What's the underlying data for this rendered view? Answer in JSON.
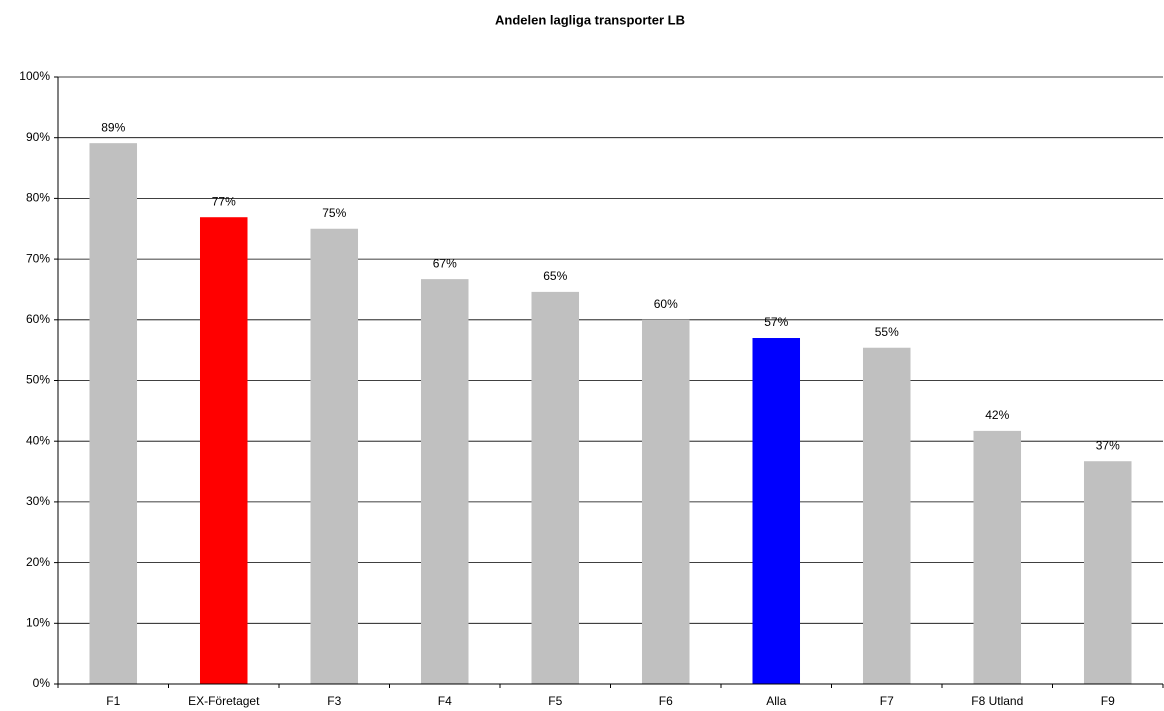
{
  "chart_data": {
    "type": "bar",
    "title": "Andelen lagliga transporter LB",
    "categories": [
      "F1",
      "EX-Företaget",
      "F3",
      "F4",
      "F5",
      "F6",
      "Alla",
      "F7",
      "F8 Utland",
      "F9"
    ],
    "values": [
      89.1,
      76.9,
      75.0,
      66.7,
      64.6,
      60.0,
      57.0,
      55.4,
      41.7,
      36.7
    ],
    "value_labels": [
      "89%",
      "77%",
      "75%",
      "67%",
      "65%",
      "60%",
      "57%",
      "55%",
      "42%",
      "37%"
    ],
    "colors": [
      "#c0c0c0",
      "#ff0000",
      "#c0c0c0",
      "#c0c0c0",
      "#c0c0c0",
      "#c0c0c0",
      "#0000ff",
      "#c0c0c0",
      "#c0c0c0",
      "#c0c0c0"
    ],
    "ylim": [
      0,
      100
    ],
    "yticks": [
      {
        "value": 0,
        "label": "0%"
      },
      {
        "value": 10,
        "label": "10%"
      },
      {
        "value": 20,
        "label": "20%"
      },
      {
        "value": 30,
        "label": "30%"
      },
      {
        "value": 40,
        "label": "40%"
      },
      {
        "value": 50,
        "label": "50%"
      },
      {
        "value": 60,
        "label": "60%"
      },
      {
        "value": 70,
        "label": "70%"
      },
      {
        "value": 80,
        "label": "80%"
      },
      {
        "value": 90,
        "label": "90%"
      },
      {
        "value": 100,
        "label": "100%"
      }
    ],
    "grid": true
  }
}
